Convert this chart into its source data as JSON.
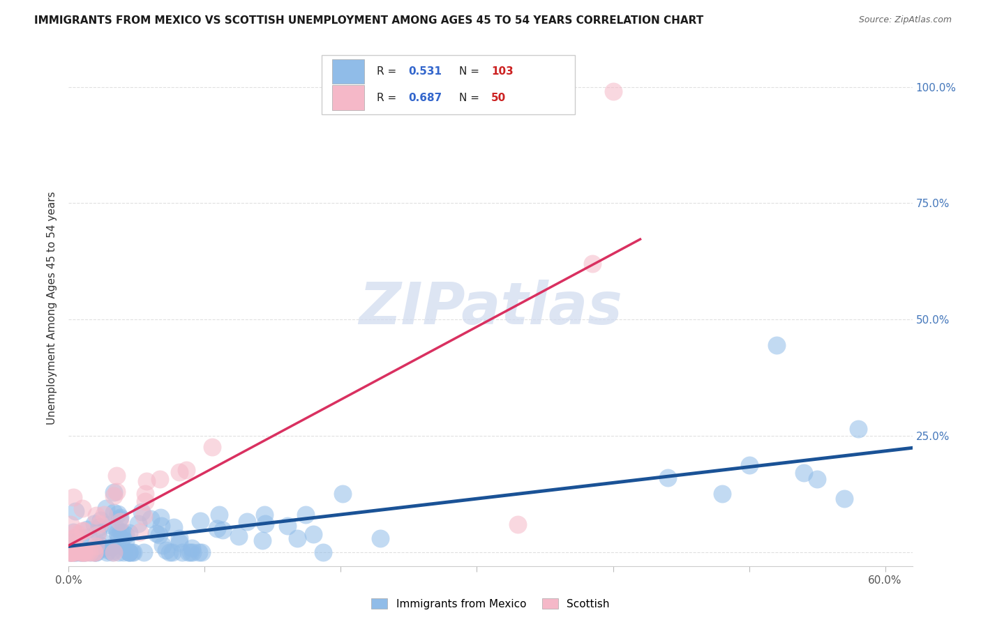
{
  "title": "IMMIGRANTS FROM MEXICO VS SCOTTISH UNEMPLOYMENT AMONG AGES 45 TO 54 YEARS CORRELATION CHART",
  "source": "Source: ZipAtlas.com",
  "ylabel": "Unemployment Among Ages 45 to 54 years",
  "xlim": [
    0.0,
    0.62
  ],
  "ylim": [
    -0.03,
    1.08
  ],
  "xtick_positions": [
    0.0,
    0.1,
    0.2,
    0.3,
    0.4,
    0.5,
    0.6
  ],
  "xticklabels": [
    "0.0%",
    "",
    "",
    "",
    "",
    "",
    "60.0%"
  ],
  "ytick_positions": [
    0.0,
    0.25,
    0.5,
    0.75,
    1.0
  ],
  "yticklabels_right": [
    "",
    "25.0%",
    "50.0%",
    "75.0%",
    "100.0%"
  ],
  "blue_R": 0.531,
  "blue_N": 103,
  "pink_R": 0.687,
  "pink_N": 50,
  "blue_scatter_color": "#90bce8",
  "pink_scatter_color": "#f5b8c8",
  "blue_line_color": "#1a5296",
  "pink_line_color": "#d93060",
  "watermark": "ZIPatlas",
  "legend_label_blue": "Immigrants from Mexico",
  "legend_label_pink": "Scottish",
  "title_fontsize": 11,
  "source_fontsize": 9,
  "tick_fontsize": 11,
  "ylabel_fontsize": 11
}
